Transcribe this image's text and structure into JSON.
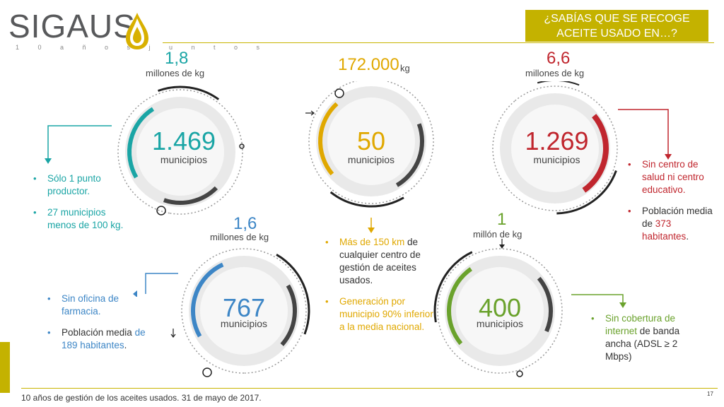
{
  "header": {
    "logo_text": "SIGAUS",
    "logo_tagline": "1 0 a ñ o s j u n t o s",
    "title": "¿SABÍAS QUE SE RECOGE ACEITE USADO EN…?"
  },
  "colors": {
    "teal": "#1aa5a5",
    "gold": "#e0a800",
    "red": "#c0262e",
    "blue": "#3d86c6",
    "green": "#6aa22c",
    "accent": "#c4b200"
  },
  "circles": [
    {
      "color_name": "teal",
      "amount_value": "1,8",
      "amount_unit": "millones de kg",
      "number": "1.469",
      "label": "municipios",
      "bullets": [
        {
          "text": "Sólo 1 punto productor."
        },
        {
          "text": "27 municipios menos de 100 kg."
        }
      ]
    },
    {
      "color_name": "gold",
      "amount_value": "172.000",
      "amount_unit": "kg",
      "number": "50",
      "label": "municipios",
      "bullets": [
        {
          "highlight": "Más de 150 km",
          "text": " de cualquier centro de gestión de aceites usados."
        },
        {
          "highlight": "Generación por municipio 90% inferior a la media nacional.",
          "text": ""
        }
      ]
    },
    {
      "color_name": "red",
      "amount_value": "6,6",
      "amount_unit": "millones de kg",
      "number": "1.269",
      "label": "municipios",
      "bullets": [
        {
          "highlight": "Sin centro de salud ni centro educativo.",
          "text": ""
        },
        {
          "pre": "Población media de ",
          "highlight": "373 habitantes",
          "post": "."
        }
      ]
    },
    {
      "color_name": "blue",
      "amount_value": "1,6",
      "amount_unit": "millones de kg",
      "number": "767",
      "label": "municipios",
      "bullets": [
        {
          "highlight": "Sin oficina de farmacia.",
          "text": ""
        },
        {
          "pre": "Población media ",
          "highlight": "de 189 habitantes",
          "post": "."
        }
      ]
    },
    {
      "color_name": "green",
      "amount_value": "1",
      "amount_unit": "millón de kg",
      "number": "400",
      "label": "municipios",
      "bullets": [
        {
          "highlight": "Sin cobertura de internet",
          "text": " de banda ancha (ADSL ≥ 2 Mbps)"
        }
      ]
    }
  ],
  "footer": {
    "text": "10 años de gestión de los aceites usados. 31 de mayo de 2017.",
    "page": "17"
  }
}
